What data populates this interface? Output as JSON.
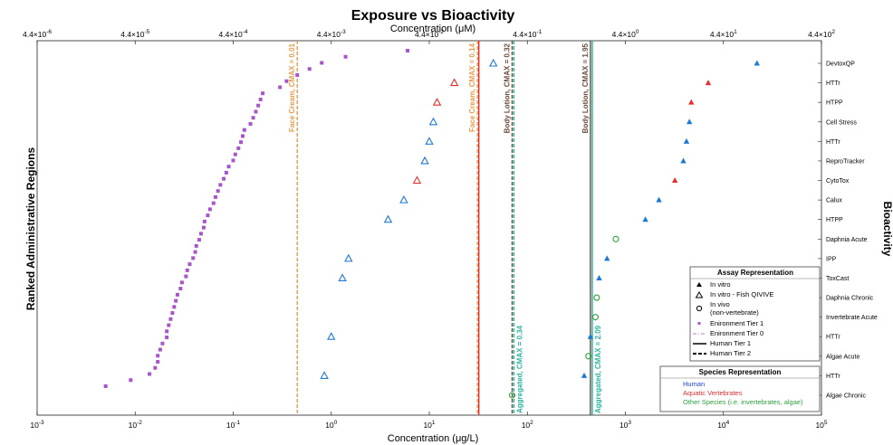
{
  "chart_data": {
    "type": "scatter",
    "title": "Exposure vs Bioactivity",
    "xlabel": "Concentration (μg/L)",
    "x2label": "Concentration (μM)",
    "ylabel_left": "Ranked Administrative Regions",
    "ylabel_right": "Bioactivity",
    "xscale": "log",
    "xlim": [
      0.001,
      100000
    ],
    "x_ticks": [
      "10^-3",
      "10^-2",
      "10^-1",
      "10^0",
      "10^1",
      "10^2",
      "10^3",
      "10^4",
      "10^5"
    ],
    "x2_ticks": [
      "4.4×10^-6",
      "4.4×10^-5",
      "4.4×10^-4",
      "4.4×10^-3",
      "4.4×10^-2",
      "4.4×10^-1",
      "4.4×10^0",
      "4.4×10^1",
      "4.4×10^2"
    ],
    "categories": [
      "DevtoxQP",
      "HTTr",
      "HTPP",
      "Cell Stress",
      "HTTr",
      "ReproTracker",
      "CytoTox",
      "Calux",
      "HTPP",
      "Daphnia Acute",
      "IPP",
      "ToxCast",
      "Daphnia Chronic",
      "Invertebrate Acute",
      "HTTr",
      "Algae Acute",
      "HTTr",
      "Algae Chronic"
    ],
    "colors": {
      "human": "#1f78d4",
      "aquatic": "#e3302f",
      "other": "#2e9e3e",
      "env": "#a855c8",
      "face": "#e89a4a",
      "lotion": "#6b4a3a",
      "agg": "#2bb3a0"
    },
    "env_tier1": [
      0.005,
      0.009,
      0.014,
      0.016,
      0.017,
      0.017,
      0.018,
      0.019,
      0.021,
      0.021,
      0.022,
      0.023,
      0.024,
      0.025,
      0.026,
      0.027,
      0.029,
      0.03,
      0.033,
      0.034,
      0.036,
      0.039,
      0.041,
      0.042,
      0.045,
      0.047,
      0.05,
      0.051,
      0.055,
      0.058,
      0.063,
      0.066,
      0.07,
      0.074,
      0.08,
      0.085,
      0.09,
      0.1,
      0.105,
      0.113,
      0.12,
      0.125,
      0.13,
      0.15,
      0.16,
      0.17,
      0.18,
      0.19,
      0.2,
      0.3,
      0.35,
      0.45,
      0.6,
      0.8,
      1.4,
      6
    ],
    "in_vitro": [
      {
        "x": 22000,
        "y": 0,
        "group": "human"
      },
      {
        "x": 7000,
        "y": 1,
        "group": "aquatic"
      },
      {
        "x": 4700,
        "y": 2,
        "group": "aquatic"
      },
      {
        "x": 4500,
        "y": 3,
        "group": "human"
      },
      {
        "x": 4200,
        "y": 4,
        "group": "human"
      },
      {
        "x": 3900,
        "y": 5,
        "group": "human"
      },
      {
        "x": 3200,
        "y": 6,
        "group": "aquatic"
      },
      {
        "x": 2200,
        "y": 7,
        "group": "human"
      },
      {
        "x": 1600,
        "y": 8,
        "group": "human"
      },
      {
        "x": 650,
        "y": 10,
        "group": "human"
      },
      {
        "x": 540,
        "y": 11,
        "group": "human"
      },
      {
        "x": 440,
        "y": 14,
        "group": "human"
      },
      {
        "x": 380,
        "y": 16,
        "group": "human"
      }
    ],
    "in_vitro_fish": [
      {
        "x": 45,
        "y": 0,
        "group": "human"
      },
      {
        "x": 18,
        "y": 1,
        "group": "aquatic"
      },
      {
        "x": 12,
        "y": 2,
        "group": "aquatic"
      },
      {
        "x": 11,
        "y": 3,
        "group": "human"
      },
      {
        "x": 10,
        "y": 4,
        "group": "human"
      },
      {
        "x": 9,
        "y": 5,
        "group": "human"
      },
      {
        "x": 7.5,
        "y": 6,
        "group": "aquatic"
      },
      {
        "x": 5.5,
        "y": 7,
        "group": "human"
      },
      {
        "x": 3.8,
        "y": 8,
        "group": "human"
      },
      {
        "x": 1.5,
        "y": 10,
        "group": "human"
      },
      {
        "x": 1.3,
        "y": 11,
        "group": "human"
      },
      {
        "x": 1.0,
        "y": 14,
        "group": "human"
      },
      {
        "x": 0.85,
        "y": 16,
        "group": "human"
      }
    ],
    "in_vivo": [
      {
        "x": 800,
        "y": 9,
        "group": "other"
      },
      {
        "x": 510,
        "y": 12,
        "group": "other"
      },
      {
        "x": 495,
        "y": 13,
        "group": "other"
      },
      {
        "x": 420,
        "y": 15,
        "group": "other"
      },
      {
        "x": 70,
        "y": 17,
        "group": "other"
      }
    ],
    "vlines": [
      {
        "x": 0.45,
        "label": "Face Cream, CMAX = 0.01",
        "color": "face",
        "style": "dashed",
        "label_pos": "top"
      },
      {
        "x": 31,
        "label": "Face Cream, CMAX = 0.14",
        "color": "face",
        "style": "dashed",
        "label_pos": "top"
      },
      {
        "x": 32,
        "label": "",
        "color": "aquatic",
        "style": "solid",
        "label_pos": "none"
      },
      {
        "x": 70,
        "label": "Body Lotion, CMAX = 0.32",
        "color": "lotion",
        "style": "dashed",
        "label_pos": "top"
      },
      {
        "x": 73,
        "label": "Aggregated, CMAX = 0.34",
        "color": "agg",
        "style": "dashed",
        "label_pos": "bottom"
      },
      {
        "x": 440,
        "label": "Body Lotion, CMAX = 1.95",
        "color": "lotion",
        "style": "solid",
        "label_pos": "top"
      },
      {
        "x": 460,
        "label": "Aggregated, CMAX = 2.09",
        "color": "agg",
        "style": "solid",
        "label_pos": "bottom"
      }
    ],
    "legend_assay": {
      "title": "Assay Representation",
      "items": [
        "In vitro",
        "In vitro - Fish QIVIVE",
        "In vivo",
        "(non-vertebrate)",
        "Enironment Tier 1",
        "Enironment Tier 0",
        "Human Tier 1",
        "Human Tier 2"
      ]
    },
    "legend_species": {
      "title": "Species Representation",
      "items": [
        {
          "label": "Human",
          "color": "human"
        },
        {
          "label": "Aquatic Vertebrates",
          "color": "aquatic"
        },
        {
          "label": "Other Species (i.e. invertebrates, algae)",
          "color": "other"
        }
      ]
    },
    "grid": false
  }
}
